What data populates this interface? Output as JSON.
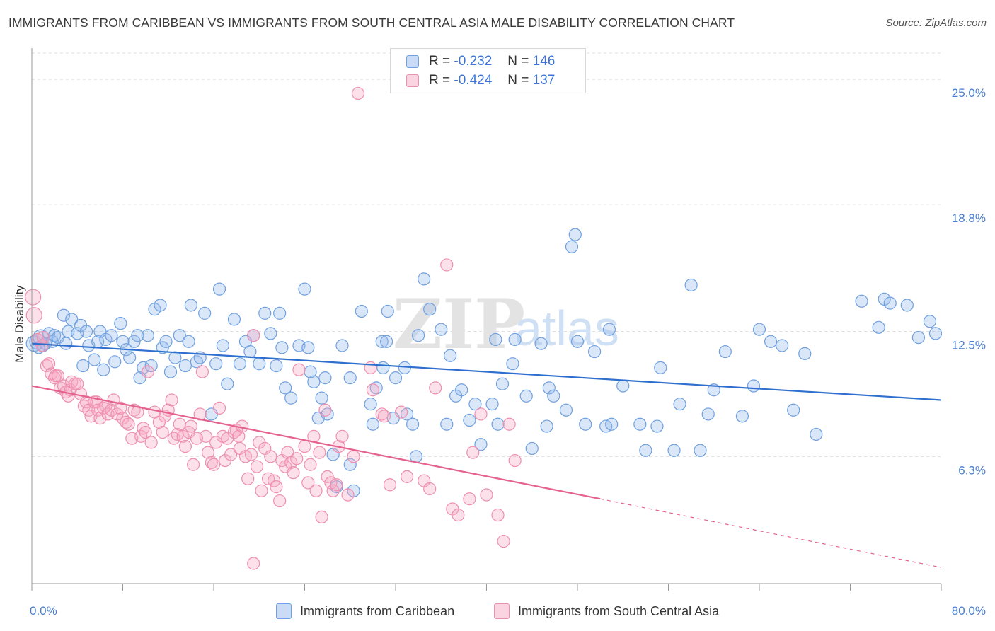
{
  "title": "IMMIGRANTS FROM CARIBBEAN VS IMMIGRANTS FROM SOUTH CENTRAL ASIA MALE DISABILITY CORRELATION CHART",
  "source": "Source: ZipAtlas.com",
  "watermark": {
    "zip": "ZIP",
    "atlas": "atlas"
  },
  "legend": {
    "series1": {
      "r_label": "R = ",
      "r_value": "-0.232",
      "n_label": "N = ",
      "n_value": "146"
    },
    "series2": {
      "r_label": "R = ",
      "r_value": "-0.424",
      "n_label": "N = ",
      "n_value": "137"
    }
  },
  "bottom_legend": {
    "series1": "Immigrants from Caribbean",
    "series2": "Immigrants from South Central Asia"
  },
  "colors": {
    "blue_fill": "rgba(150,185,235,0.35)",
    "blue_stroke": "#6fa0e0",
    "blue_line": "#2e6fcf",
    "pink_fill": "rgba(245,170,195,0.35)",
    "pink_stroke": "#ee8fb0",
    "pink_line": "#e5628e",
    "tick_text": "#4a7fd0",
    "grid": "#dedede"
  },
  "chart_data": {
    "type": "scatter",
    "title": "IMMIGRANTS FROM CARIBBEAN VS IMMIGRANTS FROM SOUTH CENTRAL ASIA MALE DISABILITY CORRELATION CHART",
    "xlabel": "",
    "ylabel": "Male Disability",
    "xlim": [
      0,
      80
    ],
    "ylim": [
      0,
      26.3
    ],
    "x_tick_labels": [
      "0.0%",
      "80.0%"
    ],
    "y_ticks": [
      {
        "value": 6.3,
        "label": "6.3%"
      },
      {
        "value": 12.5,
        "label": "12.5%"
      },
      {
        "value": 18.8,
        "label": "18.8%"
      },
      {
        "value": 25.0,
        "label": "25.0%"
      }
    ],
    "grid": true,
    "legend_position": "top-center",
    "series": [
      {
        "name": "Immigrants from Caribbean",
        "r": -0.232,
        "n": 146,
        "trend": {
          "x0": 0,
          "y0": 11.9,
          "x1": 80,
          "y1": 9.1
        },
        "points": [
          [
            0.2,
            11.9
          ],
          [
            0.5,
            12.0
          ],
          [
            0.8,
            12.2
          ],
          [
            1.0,
            11.8
          ],
          [
            1.2,
            11.9
          ],
          [
            1.5,
            12.4
          ],
          [
            1.8,
            12.0
          ],
          [
            2.0,
            12.3
          ],
          [
            2.3,
            12.2
          ],
          [
            2.8,
            13.3
          ],
          [
            3.0,
            11.9
          ],
          [
            3.2,
            12.5
          ],
          [
            3.5,
            13.1
          ],
          [
            4.0,
            12.4
          ],
          [
            4.3,
            12.8
          ],
          [
            4.5,
            10.8
          ],
          [
            4.8,
            12.5
          ],
          [
            5.0,
            11.8
          ],
          [
            5.5,
            11.1
          ],
          [
            5.8,
            12.0
          ],
          [
            6.0,
            12.5
          ],
          [
            6.3,
            10.6
          ],
          [
            6.5,
            12.1
          ],
          [
            7.0,
            12.3
          ],
          [
            7.3,
            11.0
          ],
          [
            7.8,
            12.9
          ],
          [
            8.0,
            12.0
          ],
          [
            8.3,
            11.6
          ],
          [
            8.6,
            11.2
          ],
          [
            9.0,
            12.0
          ],
          [
            9.3,
            12.3
          ],
          [
            9.5,
            10.2
          ],
          [
            9.8,
            10.7
          ],
          [
            10.5,
            10.8
          ],
          [
            10.8,
            13.6
          ],
          [
            11.3,
            13.8
          ],
          [
            11.5,
            11.7
          ],
          [
            11.8,
            12.0
          ],
          [
            12.2,
            10.5
          ],
          [
            12.6,
            11.2
          ],
          [
            13.0,
            12.3
          ],
          [
            13.5,
            10.8
          ],
          [
            13.8,
            12.0
          ],
          [
            14.0,
            13.8
          ],
          [
            14.5,
            11.0
          ],
          [
            14.8,
            11.2
          ],
          [
            15.2,
            13.4
          ],
          [
            15.8,
            8.4
          ],
          [
            16.2,
            10.9
          ],
          [
            16.5,
            14.6
          ],
          [
            16.8,
            11.8
          ],
          [
            17.2,
            9.9
          ],
          [
            17.8,
            13.1
          ],
          [
            18.3,
            10.9
          ],
          [
            18.8,
            12.0
          ],
          [
            19.2,
            11.5
          ],
          [
            19.5,
            12.3
          ],
          [
            20.0,
            10.9
          ],
          [
            20.5,
            13.4
          ],
          [
            21.0,
            12.4
          ],
          [
            21.5,
            10.8
          ],
          [
            21.8,
            13.4
          ],
          [
            22.0,
            11.7
          ],
          [
            22.3,
            9.7
          ],
          [
            22.8,
            9.2
          ],
          [
            23.5,
            11.8
          ],
          [
            24.0,
            14.6
          ],
          [
            24.3,
            11.7
          ],
          [
            24.5,
            10.5
          ],
          [
            24.8,
            10.0
          ],
          [
            25.2,
            8.2
          ],
          [
            25.5,
            9.2
          ],
          [
            25.8,
            10.2
          ],
          [
            26.5,
            6.4
          ],
          [
            26.8,
            4.8
          ],
          [
            27.3,
            11.8
          ],
          [
            28.0,
            5.9
          ],
          [
            28.0,
            10.2
          ],
          [
            28.3,
            4.6
          ],
          [
            29.0,
            13.5
          ],
          [
            29.8,
            8.9
          ],
          [
            30.0,
            7.9
          ],
          [
            30.3,
            9.7
          ],
          [
            30.8,
            12.0
          ],
          [
            31.2,
            12.0
          ],
          [
            31.3,
            13.5
          ],
          [
            31.8,
            8.2
          ],
          [
            32.0,
            10.2
          ],
          [
            32.8,
            10.7
          ],
          [
            33.0,
            8.4
          ],
          [
            33.5,
            7.9
          ],
          [
            33.8,
            6.3
          ],
          [
            34.0,
            12.3
          ],
          [
            34.5,
            15.1
          ],
          [
            35.0,
            13.6
          ],
          [
            36.0,
            12.6
          ],
          [
            36.5,
            7.9
          ],
          [
            36.8,
            11.3
          ],
          [
            37.3,
            9.3
          ],
          [
            37.8,
            9.6
          ],
          [
            38.5,
            8.1
          ],
          [
            39.0,
            8.9
          ],
          [
            39.5,
            6.9
          ],
          [
            40.5,
            8.9
          ],
          [
            40.8,
            12.1
          ],
          [
            41.0,
            7.9
          ],
          [
            41.4,
            9.9
          ],
          [
            42.3,
            10.9
          ],
          [
            42.5,
            12.1
          ],
          [
            43.5,
            9.3
          ],
          [
            44.0,
            6.7
          ],
          [
            44.8,
            11.9
          ],
          [
            45.3,
            7.8
          ],
          [
            45.5,
            9.7
          ],
          [
            45.9,
            9.3
          ],
          [
            47.0,
            8.6
          ],
          [
            47.5,
            16.7
          ],
          [
            47.8,
            17.3
          ],
          [
            48.0,
            12.0
          ],
          [
            48.7,
            7.9
          ],
          [
            49.5,
            11.5
          ],
          [
            50.5,
            7.8
          ],
          [
            50.8,
            12.6
          ],
          [
            51.0,
            7.9
          ],
          [
            52.0,
            9.8
          ],
          [
            53.5,
            7.9
          ],
          [
            54.0,
            6.6
          ],
          [
            55.0,
            7.8
          ],
          [
            55.3,
            10.7
          ],
          [
            56.5,
            6.6
          ],
          [
            57.0,
            8.9
          ],
          [
            58.0,
            14.8
          ],
          [
            58.8,
            6.6
          ],
          [
            59.5,
            8.4
          ],
          [
            60.0,
            9.6
          ],
          [
            61.0,
            11.5
          ],
          [
            62.5,
            8.3
          ],
          [
            63.5,
            9.8
          ],
          [
            64.0,
            12.6
          ],
          [
            65.0,
            12.0
          ],
          [
            66.0,
            11.8
          ],
          [
            67.0,
            8.6
          ],
          [
            68.0,
            11.4
          ],
          [
            69.0,
            7.4
          ],
          [
            73.0,
            14.0
          ],
          [
            74.5,
            12.7
          ],
          [
            75.0,
            14.1
          ],
          [
            75.5,
            13.9
          ],
          [
            77.0,
            13.8
          ],
          [
            78.0,
            12.2
          ],
          [
            79.0,
            13.0
          ],
          [
            79.5,
            12.4
          ],
          [
            30.9,
            10.7
          ],
          [
            10.2,
            12.3
          ],
          [
            26.0,
            8.4
          ],
          [
            0.6,
            11.7
          ]
        ]
      },
      {
        "name": "Immigrants from South Central Asia",
        "r": -0.424,
        "n": 137,
        "trend": {
          "x0": 0,
          "y0": 9.8,
          "x1": 50,
          "y1": 4.2
        },
        "trend_dashed_to": {
          "x": 80,
          "y": 0.8
        },
        "points": [
          [
            0.1,
            14.2
          ],
          [
            0.2,
            13.3
          ],
          [
            0.5,
            12.1
          ],
          [
            0.9,
            11.8
          ],
          [
            1.0,
            12.2
          ],
          [
            1.3,
            10.8
          ],
          [
            1.5,
            10.9
          ],
          [
            1.7,
            10.4
          ],
          [
            2.0,
            10.2
          ],
          [
            2.1,
            10.3
          ],
          [
            2.3,
            10.3
          ],
          [
            2.5,
            9.7
          ],
          [
            2.8,
            9.8
          ],
          [
            3.0,
            9.5
          ],
          [
            3.2,
            9.3
          ],
          [
            3.4,
            9.6
          ],
          [
            3.5,
            10.0
          ],
          [
            3.8,
            9.9
          ],
          [
            4.0,
            9.9
          ],
          [
            4.3,
            9.4
          ],
          [
            4.6,
            8.8
          ],
          [
            4.8,
            9.0
          ],
          [
            5.0,
            8.6
          ],
          [
            5.2,
            8.3
          ],
          [
            5.5,
            9.0
          ],
          [
            5.7,
            9.0
          ],
          [
            5.8,
            8.6
          ],
          [
            6.0,
            8.2
          ],
          [
            6.3,
            8.7
          ],
          [
            6.5,
            8.8
          ],
          [
            6.7,
            8.4
          ],
          [
            7.0,
            8.6
          ],
          [
            7.2,
            9.1
          ],
          [
            7.5,
            8.4
          ],
          [
            7.8,
            8.7
          ],
          [
            8.0,
            8.2
          ],
          [
            8.3,
            8.0
          ],
          [
            8.5,
            7.9
          ],
          [
            8.8,
            7.2
          ],
          [
            9.0,
            8.6
          ],
          [
            9.3,
            8.5
          ],
          [
            9.6,
            7.3
          ],
          [
            9.8,
            7.7
          ],
          [
            10.0,
            7.5
          ],
          [
            10.2,
            10.5
          ],
          [
            10.5,
            7.0
          ],
          [
            10.8,
            8.5
          ],
          [
            11.2,
            8.0
          ],
          [
            11.5,
            7.5
          ],
          [
            11.7,
            8.3
          ],
          [
            12.0,
            8.6
          ],
          [
            12.3,
            9.1
          ],
          [
            12.5,
            7.2
          ],
          [
            12.8,
            7.4
          ],
          [
            13.0,
            7.9
          ],
          [
            13.3,
            7.3
          ],
          [
            13.5,
            6.8
          ],
          [
            13.8,
            7.5
          ],
          [
            14.0,
            7.8
          ],
          [
            14.2,
            5.9
          ],
          [
            14.5,
            7.2
          ],
          [
            14.8,
            8.4
          ],
          [
            15.0,
            10.5
          ],
          [
            15.3,
            7.3
          ],
          [
            15.5,
            6.5
          ],
          [
            15.8,
            6.0
          ],
          [
            16.0,
            5.9
          ],
          [
            16.2,
            7.0
          ],
          [
            16.5,
            8.7
          ],
          [
            16.8,
            7.3
          ],
          [
            17.0,
            6.1
          ],
          [
            17.2,
            7.2
          ],
          [
            17.5,
            6.4
          ],
          [
            17.8,
            7.5
          ],
          [
            18.0,
            7.6
          ],
          [
            18.2,
            7.3
          ],
          [
            18.3,
            6.7
          ],
          [
            18.5,
            7.8
          ],
          [
            18.8,
            6.3
          ],
          [
            19.0,
            5.2
          ],
          [
            19.3,
            6.4
          ],
          [
            19.5,
            12.3
          ],
          [
            19.8,
            5.8
          ],
          [
            20.0,
            7.0
          ],
          [
            20.2,
            4.6
          ],
          [
            20.5,
            6.7
          ],
          [
            20.8,
            5.2
          ],
          [
            21.0,
            6.3
          ],
          [
            21.3,
            5.1
          ],
          [
            21.5,
            4.8
          ],
          [
            21.8,
            4.1
          ],
          [
            22.0,
            6.1
          ],
          [
            22.3,
            5.8
          ],
          [
            22.5,
            6.5
          ],
          [
            22.8,
            6.0
          ],
          [
            23.0,
            5.5
          ],
          [
            23.3,
            6.2
          ],
          [
            23.5,
            10.6
          ],
          [
            24.0,
            6.8
          ],
          [
            24.3,
            5.0
          ],
          [
            24.5,
            5.9
          ],
          [
            24.8,
            7.3
          ],
          [
            25.0,
            4.6
          ],
          [
            25.3,
            6.5
          ],
          [
            25.5,
            3.3
          ],
          [
            25.8,
            8.6
          ],
          [
            26.0,
            5.3
          ],
          [
            26.3,
            5.0
          ],
          [
            26.5,
            4.6
          ],
          [
            26.8,
            4.9
          ],
          [
            27.0,
            6.8
          ],
          [
            27.3,
            7.3
          ],
          [
            27.8,
            4.4
          ],
          [
            28.3,
            6.3
          ],
          [
            29.8,
            10.7
          ],
          [
            30.0,
            9.6
          ],
          [
            30.8,
            8.4
          ],
          [
            31.0,
            8.3
          ],
          [
            31.5,
            4.9
          ],
          [
            32.5,
            8.5
          ],
          [
            33.0,
            5.3
          ],
          [
            34.5,
            5.1
          ],
          [
            35.0,
            4.7
          ],
          [
            35.5,
            9.7
          ],
          [
            36.5,
            15.8
          ],
          [
            37.0,
            3.7
          ],
          [
            37.5,
            3.4
          ],
          [
            38.5,
            4.2
          ],
          [
            38.8,
            6.5
          ],
          [
            39.5,
            8.4
          ],
          [
            40.0,
            4.4
          ],
          [
            41.0,
            3.4
          ],
          [
            41.5,
            2.1
          ],
          [
            42.0,
            7.9
          ],
          [
            42.5,
            6.1
          ],
          [
            19.5,
            1.0
          ],
          [
            28.7,
            24.3
          ]
        ]
      }
    ]
  }
}
